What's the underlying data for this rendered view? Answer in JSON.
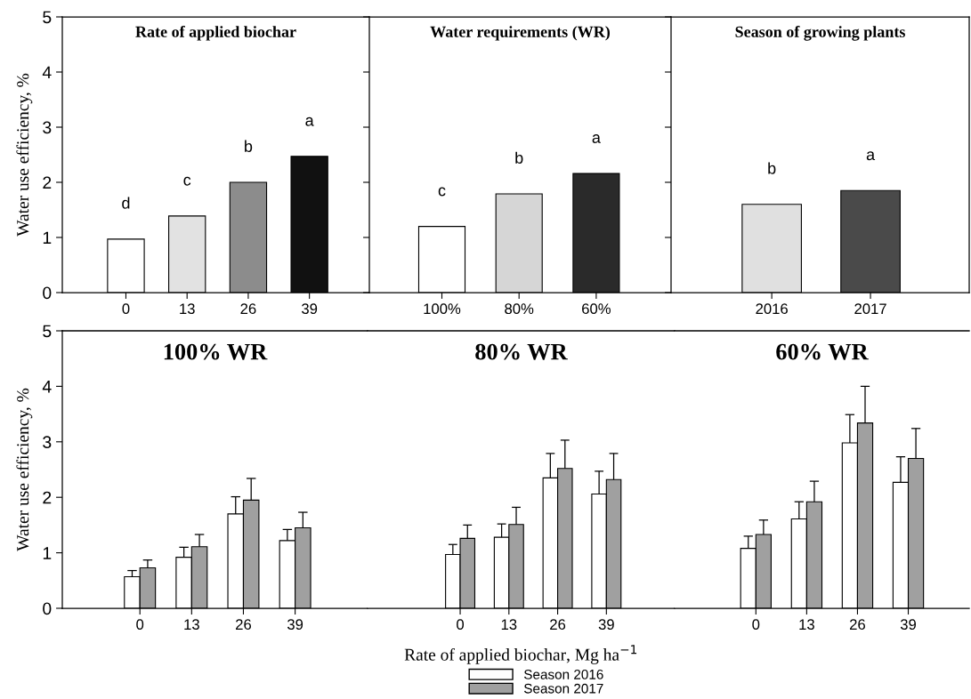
{
  "chart_data": [
    {
      "type": "bar",
      "title": "Rate of applied biochar",
      "ylabel": "Water use efficiency, %",
      "categories": [
        "0",
        "13",
        "26",
        "39"
      ],
      "values": [
        0.97,
        1.39,
        2.0,
        2.47
      ],
      "colors": [
        "#ffffff",
        "#e2e2e2",
        "#8c8c8c",
        "#111111"
      ],
      "value_labels": [
        "d",
        "c",
        "b",
        "a"
      ],
      "ylim": [
        0,
        5
      ],
      "yticks": [
        0,
        1,
        2,
        3,
        4,
        5
      ]
    },
    {
      "type": "bar",
      "title": "Water requirements (WR)",
      "categories": [
        "100%",
        "80%",
        "60%"
      ],
      "values": [
        1.2,
        1.79,
        2.16
      ],
      "colors": [
        "#ffffff",
        "#d6d6d6",
        "#2a2a2a"
      ],
      "value_labels": [
        "c",
        "b",
        "a"
      ],
      "ylim": [
        0,
        5
      ],
      "yticks": [
        0,
        1,
        2,
        3,
        4,
        5
      ],
      "tick_labels": "x"
    },
    {
      "type": "bar",
      "title": "Season of growing plants",
      "categories": [
        "2016",
        "2017"
      ],
      "values": [
        1.6,
        1.85
      ],
      "colors": [
        "#e0e0e0",
        "#4a4a4a"
      ],
      "value_labels": [
        "b",
        "a"
      ],
      "ylim": [
        0,
        5
      ],
      "yticks": [
        0,
        1,
        2,
        3,
        4,
        5
      ],
      "tick_labels": "x"
    },
    {
      "type": "bar",
      "title": "100% WR",
      "ylabel": "Water use efficiency, %",
      "categories": [
        "0",
        "13",
        "26",
        "39"
      ],
      "ylim": [
        0,
        5
      ],
      "yticks": [
        0,
        1,
        2,
        3,
        4,
        5
      ],
      "series": [
        {
          "color": "#ffffff",
          "values": [
            0.57,
            0.92,
            1.7,
            1.22
          ],
          "errors": [
            [
              0.57,
              0.68
            ],
            [
              0.92,
              1.1
            ],
            [
              1.7,
              2.01
            ],
            [
              1.22,
              1.42
            ]
          ]
        },
        {
          "color": "#a0a0a0",
          "values": [
            0.73,
            1.11,
            1.95,
            1.45
          ],
          "errors": [
            [
              0.73,
              0.87
            ],
            [
              1.11,
              1.33
            ],
            [
              1.95,
              2.34
            ],
            [
              1.45,
              1.73
            ]
          ]
        }
      ]
    },
    {
      "type": "bar",
      "title": "80% WR",
      "xlabel": "Rate of applied biochar, Mg ha$^{−1}$",
      "categories": [
        "0",
        "13",
        "26",
        "39"
      ],
      "ylim": [
        0,
        5
      ],
      "yticks": [
        0,
        1,
        2,
        3,
        4,
        5
      ],
      "tick_labels": "x",
      "legend": "bottom",
      "series": [
        {
          "name": "Season 2016",
          "color": "#ffffff",
          "values": [
            0.97,
            1.28,
            2.35,
            2.06
          ],
          "errors": [
            [
              0.97,
              1.15
            ],
            [
              1.28,
              1.52
            ],
            [
              2.35,
              2.79
            ],
            [
              2.06,
              2.47
            ]
          ]
        },
        {
          "name": "Season 2017",
          "color": "#a0a0a0",
          "values": [
            1.26,
            1.51,
            2.52,
            2.32
          ],
          "errors": [
            [
              1.26,
              1.5
            ],
            [
              1.51,
              1.82
            ],
            [
              2.52,
              3.03
            ],
            [
              2.32,
              2.79
            ]
          ]
        }
      ]
    },
    {
      "type": "bar",
      "title": "60% WR",
      "categories": [
        "0",
        "13",
        "26",
        "39"
      ],
      "ylim": [
        0,
        5
      ],
      "yticks": [
        0,
        1,
        2,
        3,
        4,
        5
      ],
      "tick_labels": "x",
      "series": [
        {
          "color": "#ffffff",
          "values": [
            1.08,
            1.61,
            2.98,
            2.27
          ],
          "errors": [
            [
              1.08,
              1.3
            ],
            [
              1.61,
              1.92
            ],
            [
              2.98,
              3.49
            ],
            [
              2.27,
              2.73
            ]
          ]
        },
        {
          "color": "#a0a0a0",
          "values": [
            1.33,
            1.92,
            3.34,
            2.7
          ],
          "errors": [
            [
              1.33,
              1.59
            ],
            [
              1.92,
              2.29
            ],
            [
              3.34,
              4.0
            ],
            [
              2.7,
              3.24
            ]
          ]
        }
      ]
    }
  ]
}
